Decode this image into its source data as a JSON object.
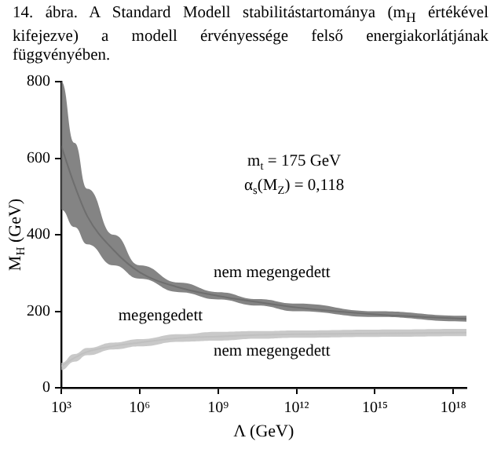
{
  "chart_data": {
    "type": "line",
    "title": "14. ábra. A Standard Modell stabilitástartománya (m$_{H}$ értékével kifejezve) a modell érvényessége felső energiakorlátjának függvényében.",
    "xlabel": "Λ (GeV)",
    "ylabel": "M$_{H}$ (GeV)",
    "x": [
      1000,
      3200,
      10000,
      100000,
      1000000,
      32000000,
      1000000000,
      32000000000,
      1000000000000,
      1000000000000000,
      3200000000000000000
    ],
    "series": [
      {
        "color": "#6e6e6e",
        "values": [
          632,
          530,
          448,
          360,
          302,
          262,
          240,
          224,
          210,
          192,
          180
        ],
        "lower": [
          465,
          420,
          375,
          320,
          285,
          250,
          231,
          215,
          200,
          185,
          173
        ],
        "upper": [
          800,
          640,
          520,
          400,
          320,
          275,
          250,
          232,
          220,
          200,
          188
        ]
      },
      {
        "color": "#c0c0c0",
        "values": [
          56,
          78,
          94,
          109,
          118,
          130,
          134,
          138,
          140,
          142,
          144
        ],
        "lower": [
          46,
          68,
          85,
          100,
          108,
          120,
          123,
          128,
          131,
          133,
          135
        ],
        "upper": [
          65,
          88,
          104,
          118,
          127,
          140,
          146,
          148,
          150,
          152,
          154
        ]
      }
    ],
    "log": "x",
    "xlim": [
      1000,
      3200000000000000000
    ],
    "xticks": [
      {
        "value": 1000,
        "label": "10³"
      },
      {
        "value": 1000000,
        "label": "10⁶"
      },
      {
        "value": 1000000000,
        "label": "10⁹"
      },
      {
        "value": 1000000000000,
        "label": "10¹²"
      },
      {
        "value": 1000000000000000,
        "label": "10¹⁵"
      },
      {
        "value": 1000000000000000000,
        "label": "10¹⁸"
      }
    ],
    "ylim": [
      0,
      800
    ],
    "yticks": [
      0,
      200,
      400,
      600,
      800
    ],
    "grid": false,
    "legend": false,
    "marker": "none",
    "annotations": [
      "m$_{t}$ = 175 GeV",
      "α$_{s}$(M$_{Z}$) = 0,118",
      "nem megengedett",
      "megengedett",
      "nem megengedett"
    ]
  }
}
